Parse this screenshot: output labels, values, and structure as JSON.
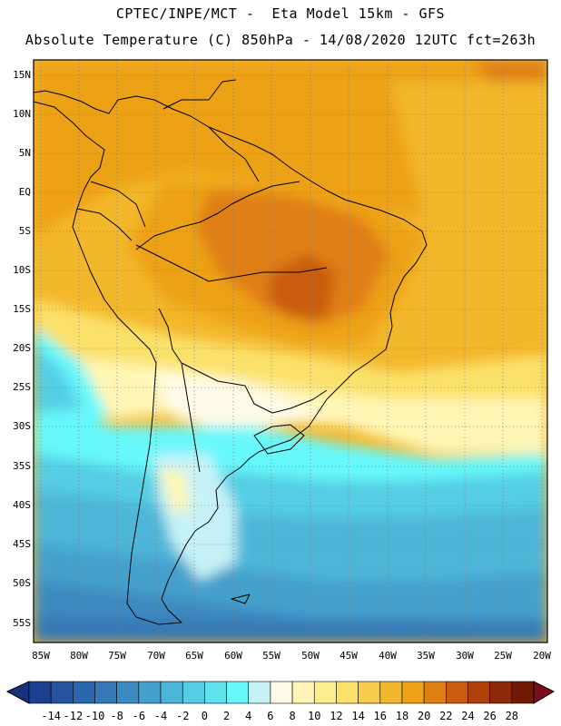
{
  "header": {
    "line1": "CPTEC/INPE/MCT -  Eta Model 15km - GFS",
    "line2": "Absolute Temperature (C) 850hPa - 14/08/2020 12UTC fct=263h"
  },
  "latitude_labels": [
    "15N",
    "10N",
    "5N",
    "EQ",
    "5S",
    "10S",
    "15S",
    "20S",
    "25S",
    "30S",
    "35S",
    "40S",
    "45S",
    "50S",
    "55S"
  ],
  "longitude_labels": [
    "85W",
    "80W",
    "75W",
    "70W",
    "65W",
    "60W",
    "55W",
    "50W",
    "45W",
    "40W",
    "35W",
    "30W",
    "25W",
    "20W"
  ],
  "colorbar": {
    "values": [
      "-14",
      "-12",
      "-10",
      "-8",
      "-6",
      "-4",
      "-2",
      "0",
      "2",
      "4",
      "6",
      "8",
      "10",
      "12",
      "14",
      "16",
      "18",
      "20",
      "22",
      "24",
      "26",
      "28"
    ],
    "colors": [
      "#1c3f8f",
      "#25539f",
      "#2c67ae",
      "#3478b6",
      "#3c8ac0",
      "#45a0cc",
      "#4db6d8",
      "#55cde4",
      "#5ee2ee",
      "#66f8fb",
      "#c6f2f7",
      "#fffbe8",
      "#fff6b5",
      "#fcee8f",
      "#fbe16a",
      "#f6cc4a",
      "#f3b72b",
      "#eda217",
      "#df7f13",
      "#c95c10",
      "#b0410c",
      "#8e2909",
      "#701a06"
    ],
    "under_color": "#17317a",
    "over_color": "#7a0f1a"
  }
}
